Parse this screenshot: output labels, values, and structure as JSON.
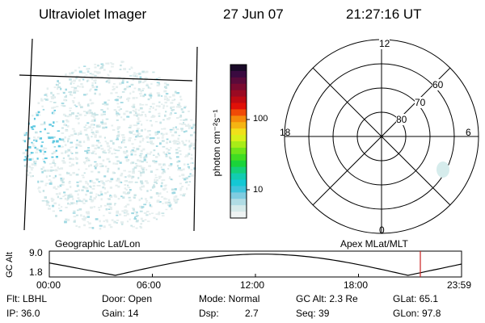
{
  "header": {
    "instrument": "Ultraviolet Imager",
    "date": "27 Jun 07",
    "time": "21:27:16 UT"
  },
  "colorbar": {
    "unit_label": "photon cm⁻²s⁻¹",
    "tick_high": "100",
    "tick_low": "10",
    "colors": [
      "#1a0a28",
      "#3a0a40",
      "#5a0a3a",
      "#7a0a30",
      "#9a0a22",
      "#be0a12",
      "#e01008",
      "#f04a06",
      "#f58a0a",
      "#f5b412",
      "#f0e01a",
      "#d8ef1a",
      "#a8ec18",
      "#70e41a",
      "#40dc22",
      "#1ad43a",
      "#14d07a",
      "#12ccb0",
      "#14c8d4",
      "#40c4dc",
      "#80cce0",
      "#b0dce4",
      "#d6eaea",
      "#eef3f3"
    ]
  },
  "polar": {
    "mlt_12": "12",
    "mlt_18": "18",
    "mlt_6": "6",
    "mlt_0": "0",
    "lat_60": "60",
    "lat_70": "70",
    "lat_80": "80"
  },
  "timeline": {
    "left_label": "Geographic Lat/Lon",
    "right_label": "Apex MLat/MLT",
    "axis_label": "GC Alt",
    "ytick_top": "9.0",
    "ytick_bottom": "1.8",
    "times": [
      "00:00",
      "06:00",
      "12:00",
      "18:00",
      "23:59"
    ],
    "current_time_fraction": 0.9
  },
  "info": {
    "flt": "Flt: LBHL",
    "ip": "IP: 36.0",
    "door": "Door: Open",
    "gain": "Gain: 14",
    "mode": "Mode: Normal",
    "dsp_label": "Dsp:",
    "dsp_value": "2.7",
    "gc_alt": "GC Alt: 2.3 Re",
    "seq": "Seq: 39",
    "glat": "GLat: 65.1",
    "glon": "GLon: 97.8"
  }
}
